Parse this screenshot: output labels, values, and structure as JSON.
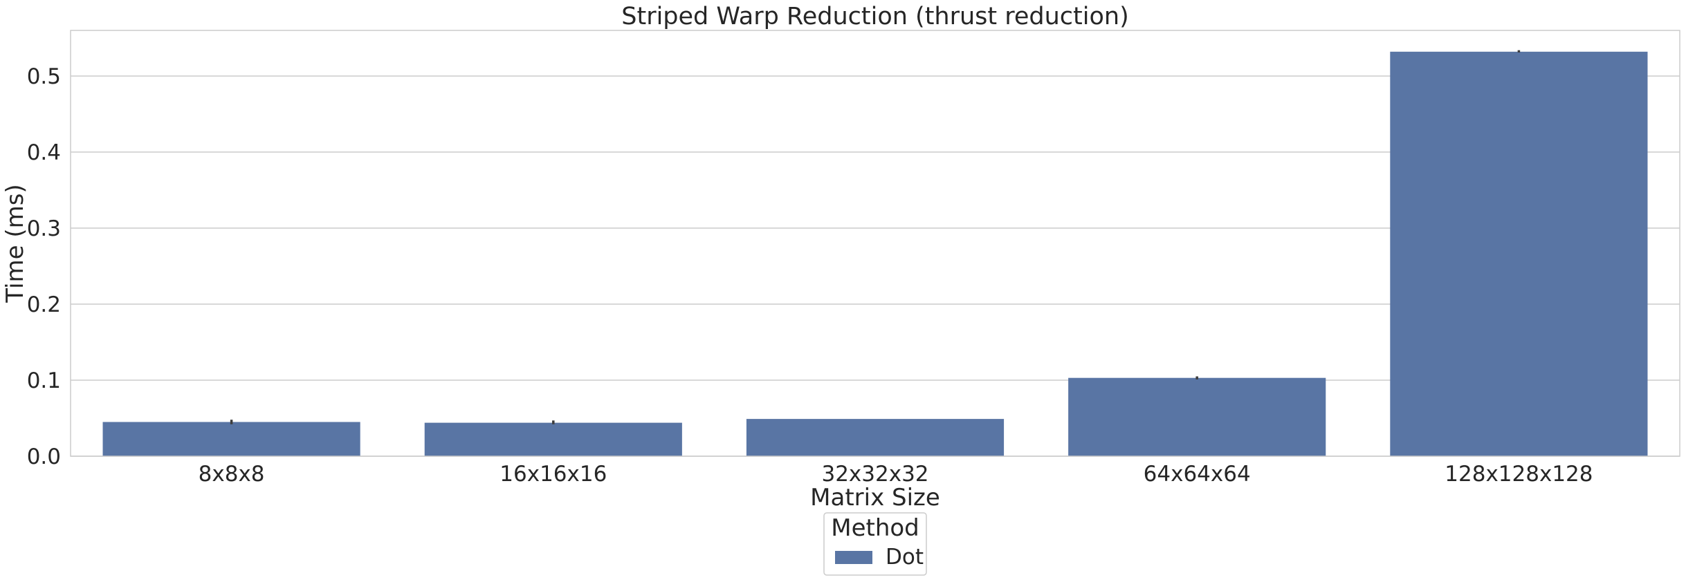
{
  "chart_data": {
    "type": "bar",
    "title": "Striped Warp Reduction (thrust reduction)",
    "xlabel": "Matrix Size",
    "ylabel": "Time (ms)",
    "categories": [
      "8x8x8",
      "16x16x16",
      "32x32x32",
      "64x64x64",
      "128x128x128"
    ],
    "series": [
      {
        "name": "Dot",
        "values": [
          0.045,
          0.044,
          0.049,
          0.103,
          0.532
        ],
        "error_low": [
          0.042,
          0.042,
          0.049,
          0.101,
          0.531
        ],
        "error_high": [
          0.048,
          0.047,
          0.049,
          0.105,
          0.534
        ],
        "color": "#5975a4"
      }
    ],
    "ylim": [
      0,
      0.56
    ],
    "yticks": [
      "0.0",
      "0.1",
      "0.2",
      "0.3",
      "0.4",
      "0.5"
    ],
    "ytick_values": [
      0.0,
      0.1,
      0.2,
      0.3,
      0.4,
      0.5
    ],
    "grid": true,
    "legend": {
      "title": "Method",
      "placement": "bottom-center"
    }
  }
}
